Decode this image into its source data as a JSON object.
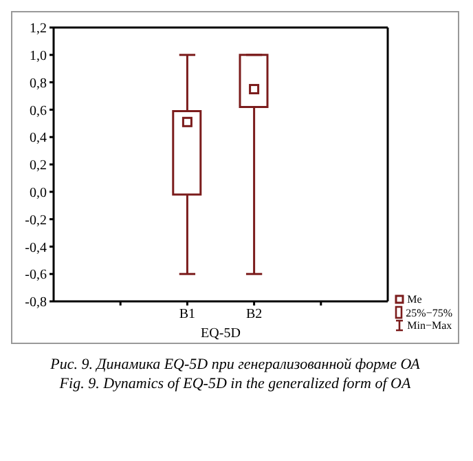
{
  "chart_data": {
    "type": "box",
    "xlabel": "EQ-5D",
    "categories": [
      "B1",
      "B2"
    ],
    "color": "#7b1c1c",
    "boxes": [
      {
        "low": -0.6,
        "q1": -0.02,
        "median": 0.51,
        "q3": 0.59,
        "high": 1.0
      },
      {
        "low": -0.6,
        "q1": 0.62,
        "median": 0.75,
        "q3": 1.0,
        "high": 1.0
      }
    ],
    "ylim": [
      -0.8,
      1.2
    ],
    "yticks": [
      {
        "value": -0.8,
        "label": "-0,8"
      },
      {
        "value": -0.6,
        "label": "-0,6"
      },
      {
        "value": -0.4,
        "label": "-0,4"
      },
      {
        "value": -0.2,
        "label": "-0,2"
      },
      {
        "value": 0,
        "label": "0,0"
      },
      {
        "value": 0.2,
        "label": "0,2"
      },
      {
        "value": 0.4,
        "label": "0,4"
      },
      {
        "value": 0.6,
        "label": "0,6"
      },
      {
        "value": 0.8,
        "label": "0,8"
      },
      {
        "value": 1.0,
        "label": "1,0"
      },
      {
        "value": 1.2,
        "label": "1,2"
      }
    ],
    "annotations": [
      "Me",
      "25%−75%",
      "Min−Max",
      "Рис. 9. Динамика EQ-5D при генерализованной форме ОА",
      "Fig. 9. Dynamics of EQ-5D in the generalized form of OA"
    ]
  }
}
